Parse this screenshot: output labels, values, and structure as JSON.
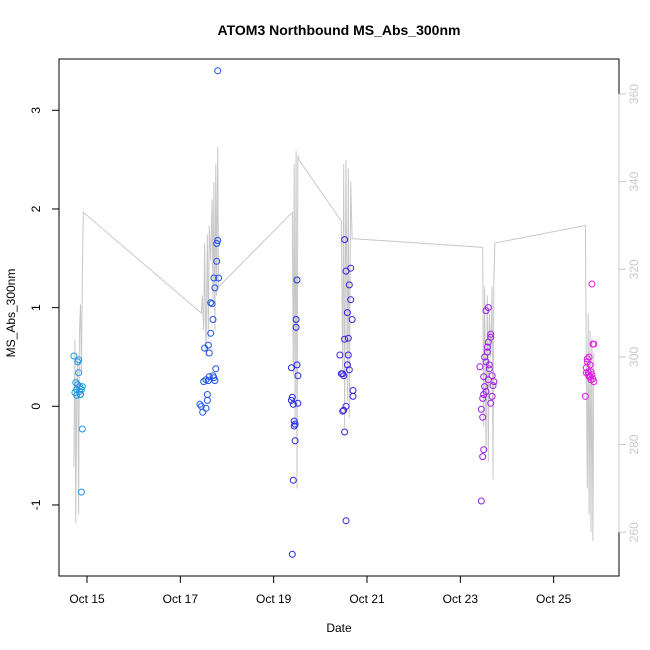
{
  "chart_data": {
    "type": "scatter",
    "title": "ATOM3 Northbound MS_Abs_300nm",
    "xlabel": "Date",
    "ylabel": "MS_Abs_300nm",
    "x_unit": "date (October)",
    "xlim": [
      14.4,
      26.4
    ],
    "ylim": [
      -1.72,
      3.52
    ],
    "y2lim": [
      250,
      368
    ],
    "x_ticks": [
      15,
      17,
      19,
      21,
      23,
      25
    ],
    "x_tick_labels": [
      "Oct 15",
      "Oct 17",
      "Oct 19",
      "Oct 21",
      "Oct 23",
      "Oct 25"
    ],
    "y_ticks": [
      -1,
      0,
      1,
      2,
      3
    ],
    "y_tick_labels": [
      "-1",
      "0",
      "1",
      "2",
      "3"
    ],
    "y2_ticks": [
      260,
      280,
      300,
      320,
      340,
      360
    ],
    "y2_tick_labels": [
      "260",
      "280",
      "300",
      "320",
      "340",
      "360"
    ],
    "grid": false,
    "colors": {
      "points_start": "#1e9be6",
      "points_mid": "#2020e6",
      "points_end": "#e61ee6",
      "line": "#c8c8c8",
      "axis_right": "#c8c8c8"
    },
    "series": [
      {
        "kind": "points",
        "color_gradient": "blue-to-magenta",
        "x": [
          14.72,
          14.74,
          14.76,
          14.78,
          14.8,
          14.82,
          14.84,
          14.86,
          14.88,
          14.9,
          14.78,
          14.8,
          14.82,
          14.84,
          14.86,
          14.88,
          14.9,
          17.42,
          17.45,
          17.48,
          17.5,
          17.52,
          17.55,
          17.58,
          17.6,
          17.62,
          17.65,
          17.68,
          17.7,
          17.72,
          17.74,
          17.76,
          17.78,
          17.8,
          17.82,
          17.55,
          17.58,
          17.6,
          17.62,
          17.65,
          17.7,
          17.72,
          17.74,
          17.78,
          17.8,
          19.38,
          19.4,
          19.42,
          19.44,
          19.46,
          19.48,
          19.5,
          19.52,
          19.4,
          19.42,
          19.44,
          19.46,
          19.48,
          19.5,
          19.52,
          19.38,
          20.42,
          20.45,
          20.48,
          20.5,
          20.52,
          20.55,
          20.58,
          20.6,
          20.62,
          20.65,
          20.68,
          20.7,
          20.48,
          20.5,
          20.52,
          20.55,
          20.58,
          20.6,
          20.62,
          20.65,
          20.7,
          20.52,
          20.55,
          23.42,
          23.45,
          23.48,
          23.5,
          23.52,
          23.55,
          23.58,
          23.6,
          23.62,
          23.65,
          23.68,
          23.7,
          23.72,
          23.45,
          23.48,
          23.5,
          23.52,
          23.55,
          23.58,
          23.6,
          23.62,
          23.65,
          23.68,
          23.48,
          23.5,
          23.55,
          23.6,
          23.65,
          25.68,
          25.7,
          25.72,
          25.74,
          25.76,
          25.78,
          25.8,
          25.82,
          25.84,
          25.86,
          25.7,
          25.72,
          25.74,
          25.76,
          25.78,
          25.8,
          25.82,
          25.84,
          25.86
        ],
        "y": [
          0.51,
          0.14,
          0.24,
          0.11,
          0.45,
          0.47,
          0.2,
          0.12,
          0.17,
          -0.23,
          0.17,
          0.22,
          0.34,
          0.15,
          0.12,
          -0.87,
          0.2,
          0.02,
          0.0,
          -0.06,
          0.25,
          0.59,
          0.27,
          0.12,
          0.26,
          0.3,
          1.05,
          1.04,
          0.31,
          0.29,
          0.26,
          0.38,
          1.65,
          1.68,
          1.3,
          -0.02,
          0.06,
          0.62,
          0.54,
          0.74,
          0.88,
          1.3,
          1.2,
          1.47,
          3.4,
          0.39,
          0.09,
          0.02,
          -0.15,
          -0.18,
          0.88,
          1.28,
          0.31,
          -1.5,
          -0.75,
          -0.2,
          -0.35,
          0.8,
          0.42,
          0.03,
          0.06,
          0.52,
          0.33,
          0.33,
          0.31,
          0.68,
          1.37,
          0.95,
          0.69,
          0.37,
          1.4,
          0.88,
          0.1,
          -0.05,
          -0.04,
          -0.26,
          -1.16,
          0.42,
          0.52,
          1.23,
          1.08,
          0.16,
          1.69,
          0.0,
          0.4,
          -0.03,
          -0.11,
          0.12,
          0.5,
          0.97,
          0.6,
          0.27,
          0.38,
          0.7,
          0.31,
          0.21,
          0.25,
          -0.96,
          -0.51,
          -0.44,
          0.2,
          0.15,
          0.55,
          1.0,
          0.42,
          0.73,
          0.1,
          0.08,
          0.3,
          0.45,
          0.65,
          0.03,
          0.1,
          0.34,
          0.45,
          0.35,
          0.5,
          0.3,
          0.27,
          0.32,
          0.28,
          0.63,
          0.39,
          0.48,
          0.32,
          0.3,
          0.42,
          0.35,
          1.24,
          0.63,
          0.25
        ]
      },
      {
        "kind": "line",
        "axis": "right",
        "color": "#c8c8c8",
        "x": [
          14.72,
          14.74,
          14.76,
          14.78,
          14.8,
          14.82,
          14.84,
          14.86,
          14.88,
          14.9,
          14.92,
          17.45,
          17.47,
          17.5,
          17.52,
          17.55,
          17.58,
          17.6,
          17.62,
          17.65,
          17.68,
          17.7,
          17.72,
          17.74,
          17.76,
          17.78,
          17.8,
          17.82,
          19.4,
          19.42,
          19.44,
          19.46,
          19.48,
          19.5,
          19.52,
          19.54,
          20.45,
          20.48,
          20.5,
          20.52,
          20.55,
          20.58,
          20.6,
          20.62,
          20.65,
          20.68,
          23.48,
          23.5,
          23.52,
          23.55,
          23.58,
          23.6,
          23.62,
          23.65,
          23.68,
          23.7,
          23.72,
          23.74,
          25.68,
          25.7,
          25.72,
          25.74,
          25.76,
          25.78,
          25.8,
          25.82,
          25.84,
          25.86
        ],
        "y": [
          275,
          304,
          262,
          292,
          300,
          264,
          306,
          312,
          296,
          318,
          333,
          310,
          314,
          306,
          326,
          300,
          328,
          304,
          330,
          322,
          336,
          312,
          340,
          306,
          344,
          314,
          348,
          316,
          333,
          296,
          344,
          284,
          347,
          270,
          346,
          345,
          331,
          296,
          344,
          284,
          345,
          290,
          343,
          286,
          340,
          327,
          325,
          284,
          316,
          278,
          314,
          276,
          310,
          300,
          316,
          272,
          318,
          326,
          330,
          300,
          270,
          310,
          264,
          306,
          260,
          304,
          258,
          301
        ]
      }
    ]
  }
}
